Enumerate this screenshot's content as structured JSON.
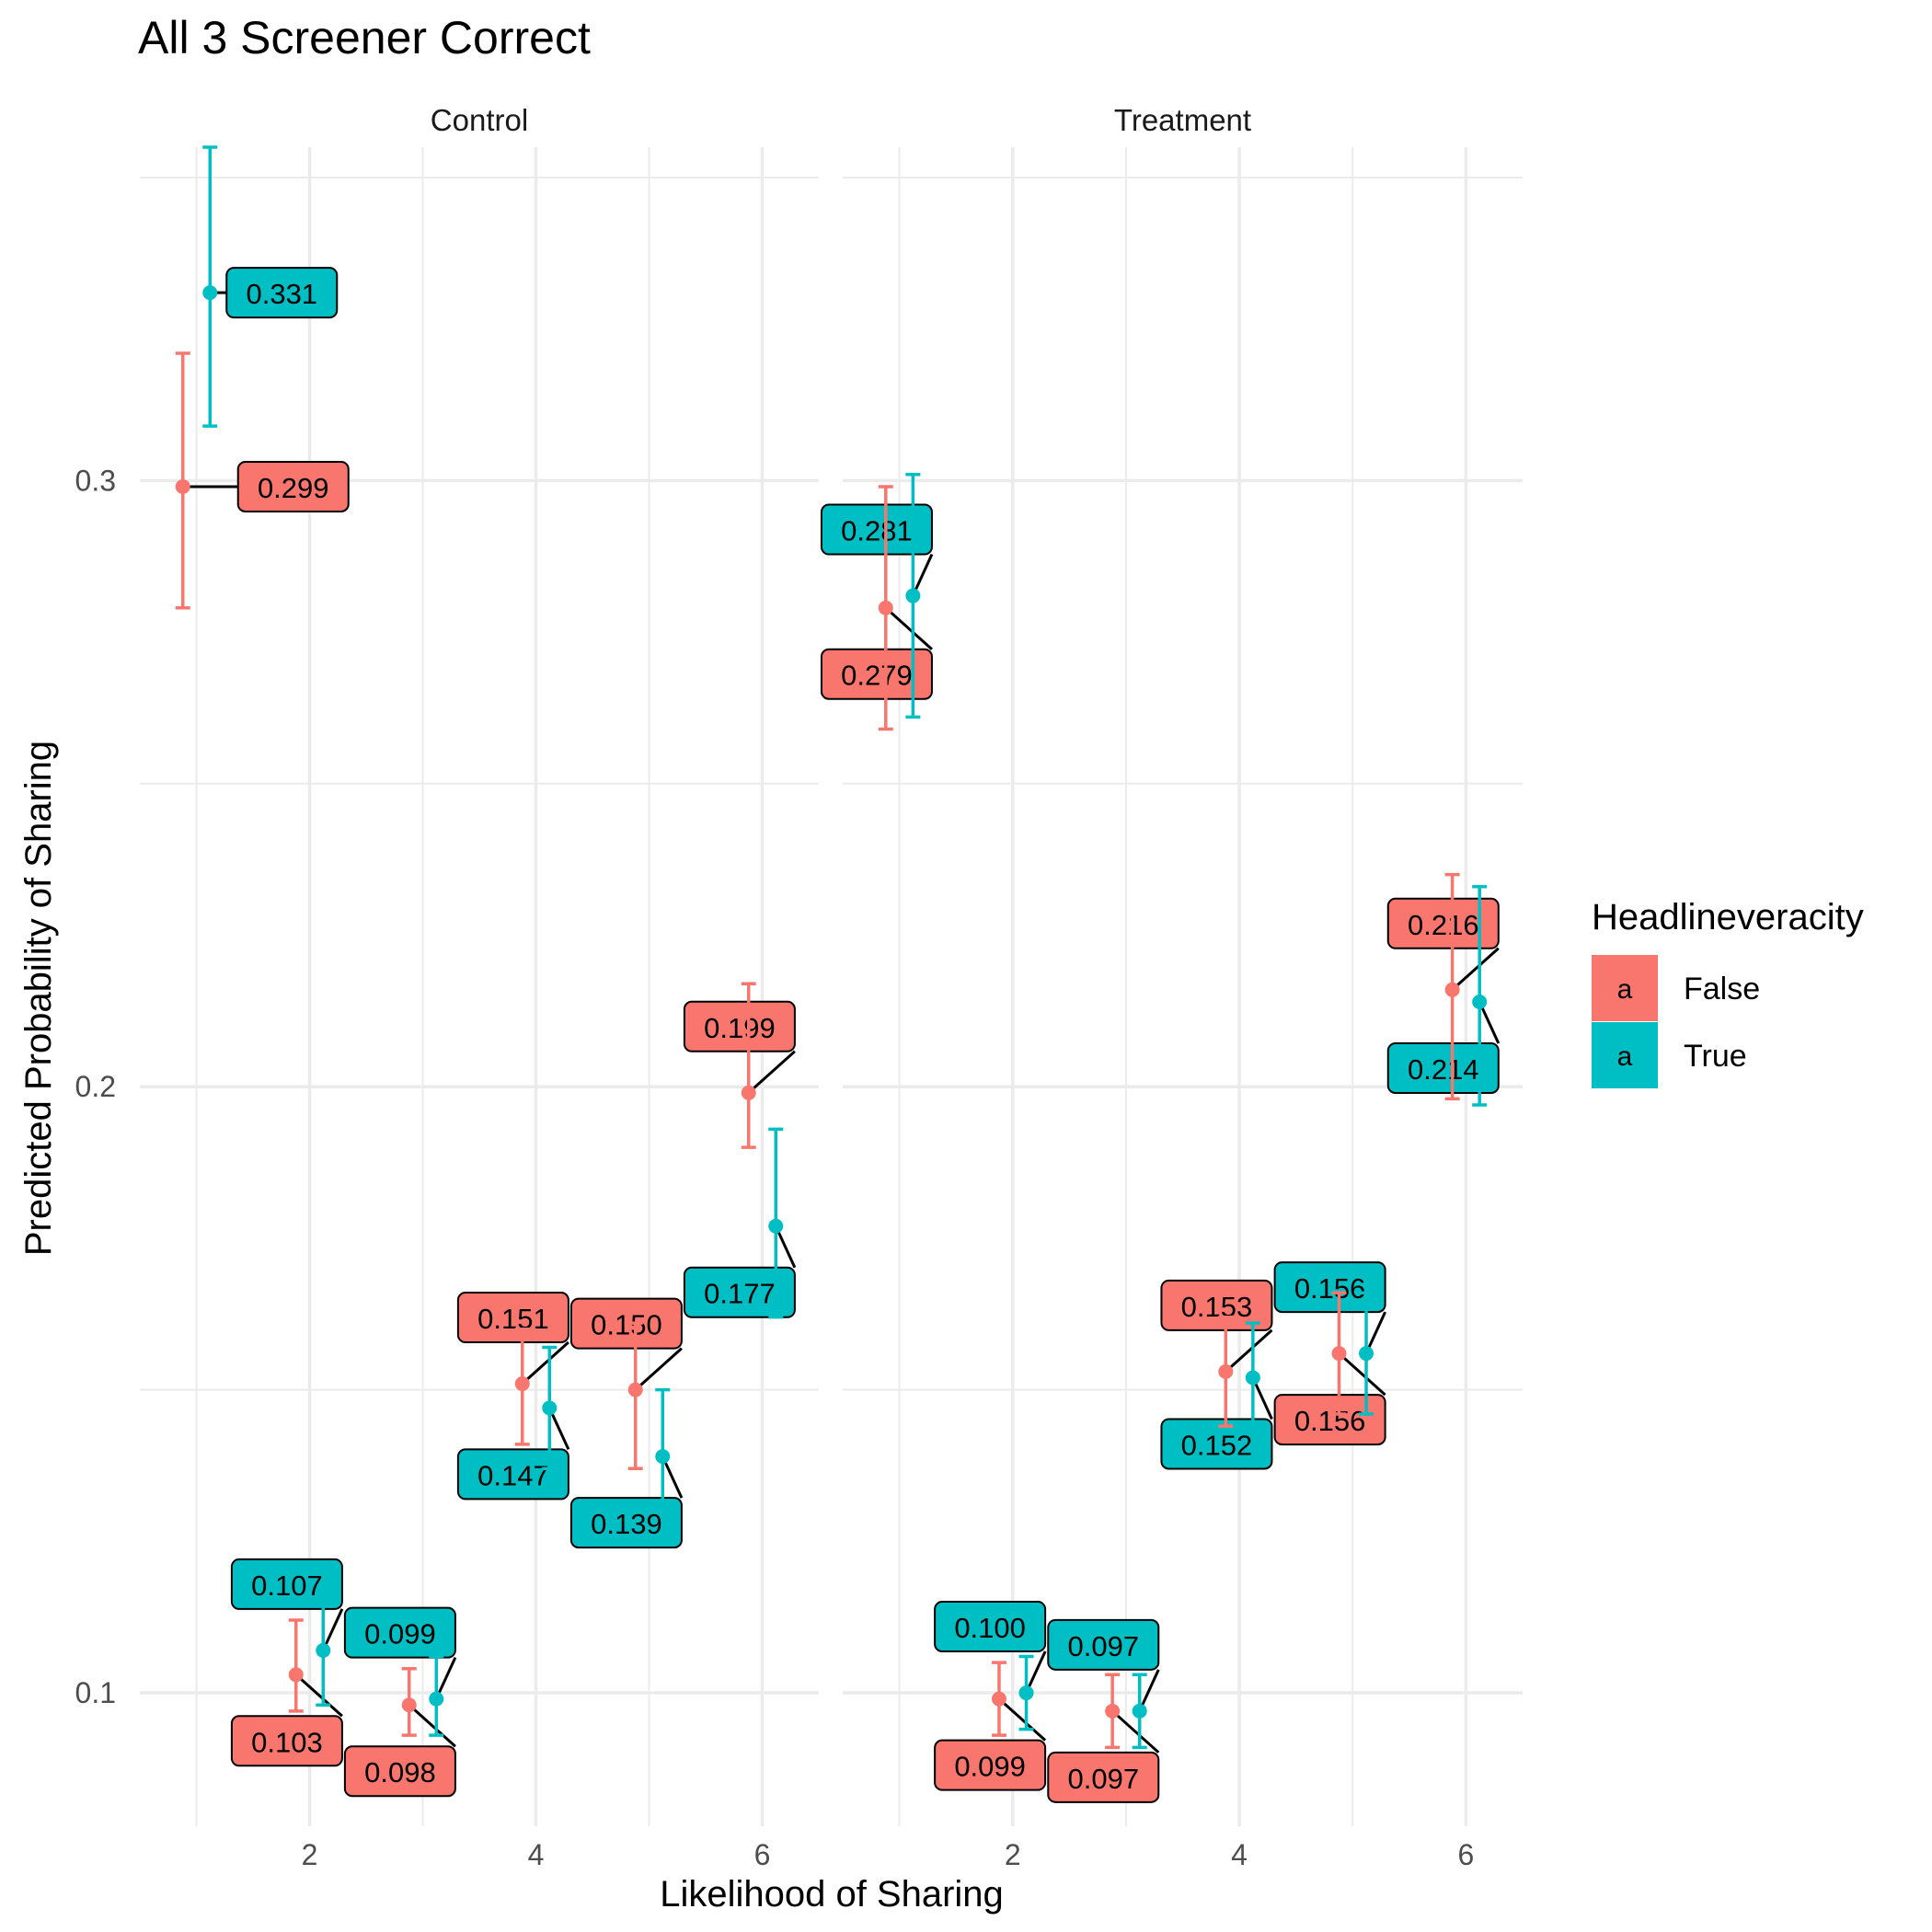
{
  "chart_data": {
    "type": "scatter",
    "title": "All 3 Screener Correct",
    "xlabel": "Likelihood of Sharing",
    "ylabel": "Predicted Probability of Sharing",
    "xlim": [
      0.5,
      6.5
    ],
    "ylim": [
      0.078,
      0.355
    ],
    "x_ticks": [
      2,
      4,
      6
    ],
    "x_tick_labels": [
      "2",
      "4",
      "6"
    ],
    "y_ticks": [
      0.1,
      0.2,
      0.3
    ],
    "y_tick_labels": [
      "0.1",
      "0.2",
      "0.3"
    ],
    "grid": true,
    "legend": {
      "title": "Headlineveracity",
      "position": "right",
      "key_glyph": "a",
      "entries": [
        {
          "label": "False",
          "color": "#F8766D"
        },
        {
          "label": "True",
          "color": "#00BFC4"
        }
      ]
    },
    "panels": [
      {
        "name": "Control",
        "series": [
          {
            "name": "False",
            "color": "#F8766D",
            "x": [
              1,
              2,
              3,
              4,
              5,
              6
            ],
            "y": [
              0.299,
              0.103,
              0.098,
              0.151,
              0.15,
              0.199
            ],
            "ci_low": [
              0.279,
              0.097,
              0.093,
              0.141,
              0.137,
              0.19
            ],
            "ci_high": [
              0.321,
              0.112,
              0.104,
              0.16,
              0.161,
              0.217
            ],
            "labels": [
              "0.299",
              "0.103",
              "0.098",
              "0.151",
              "0.150",
              "0.199"
            ]
          },
          {
            "name": "True",
            "color": "#00BFC4",
            "x": [
              1,
              2,
              3,
              4,
              5,
              6
            ],
            "y": [
              0.331,
              0.107,
              0.099,
              0.147,
              0.139,
              0.177
            ],
            "ci_low": [
              0.309,
              0.098,
              0.093,
              0.137,
              0.13,
              0.162
            ],
            "ci_high": [
              0.355,
              0.116,
              0.106,
              0.157,
              0.15,
              0.193
            ],
            "labels": [
              "0.331",
              "0.107",
              "0.099",
              "0.147",
              "0.139",
              "0.177"
            ]
          }
        ]
      },
      {
        "name": "Treatment",
        "series": [
          {
            "name": "False",
            "color": "#F8766D",
            "x": [
              1,
              2,
              3,
              4,
              5,
              6
            ],
            "y": [
              0.279,
              0.099,
              0.097,
              0.153,
              0.156,
              0.216
            ],
            "ci_low": [
              0.259,
              0.093,
              0.091,
              0.144,
              0.146,
              0.198
            ],
            "ci_high": [
              0.299,
              0.105,
              0.103,
              0.162,
              0.166,
              0.235
            ],
            "labels": [
              "0.279",
              "0.099",
              "0.097",
              "0.153",
              "0.156",
              "0.216"
            ]
          },
          {
            "name": "True",
            "color": "#00BFC4",
            "x": [
              1,
              2,
              3,
              4,
              5,
              6
            ],
            "y": [
              0.281,
              0.1,
              0.097,
              0.152,
              0.156,
              0.214
            ],
            "ci_low": [
              0.261,
              0.094,
              0.091,
              0.143,
              0.146,
              0.197
            ],
            "ci_high": [
              0.301,
              0.106,
              0.103,
              0.161,
              0.166,
              0.233
            ],
            "labels": [
              "0.281",
              "0.100",
              "0.097",
              "0.152",
              "0.156",
              "0.214"
            ]
          }
        ]
      }
    ]
  }
}
